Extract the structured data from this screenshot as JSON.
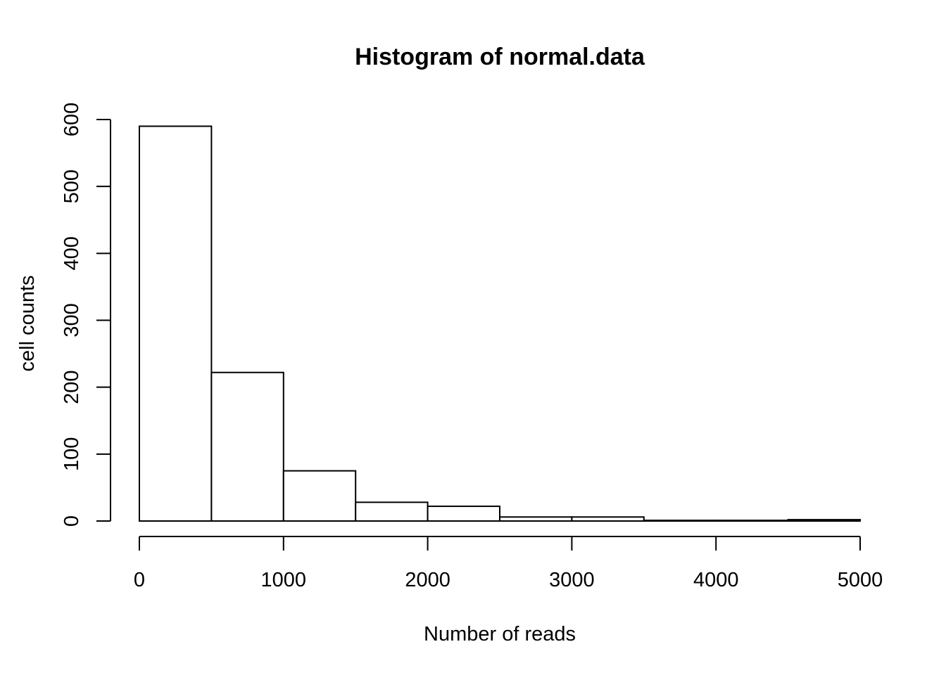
{
  "chart_data": {
    "type": "bar",
    "title": "Histogram of normal.data",
    "xlabel": "Number of reads",
    "ylabel": "cell counts",
    "bin_edges": [
      0,
      500,
      1000,
      1500,
      2000,
      2500,
      3000,
      3500,
      4000,
      4500,
      5000
    ],
    "values": [
      590,
      222,
      75,
      28,
      22,
      6,
      6,
      1,
      1,
      2
    ],
    "xlim": [
      0,
      5000
    ],
    "ylim": [
      0,
      600
    ],
    "x_ticks": [
      0,
      1000,
      2000,
      3000,
      4000,
      5000
    ],
    "y_ticks": [
      0,
      100,
      200,
      300,
      400,
      500,
      600
    ],
    "grid": false
  }
}
